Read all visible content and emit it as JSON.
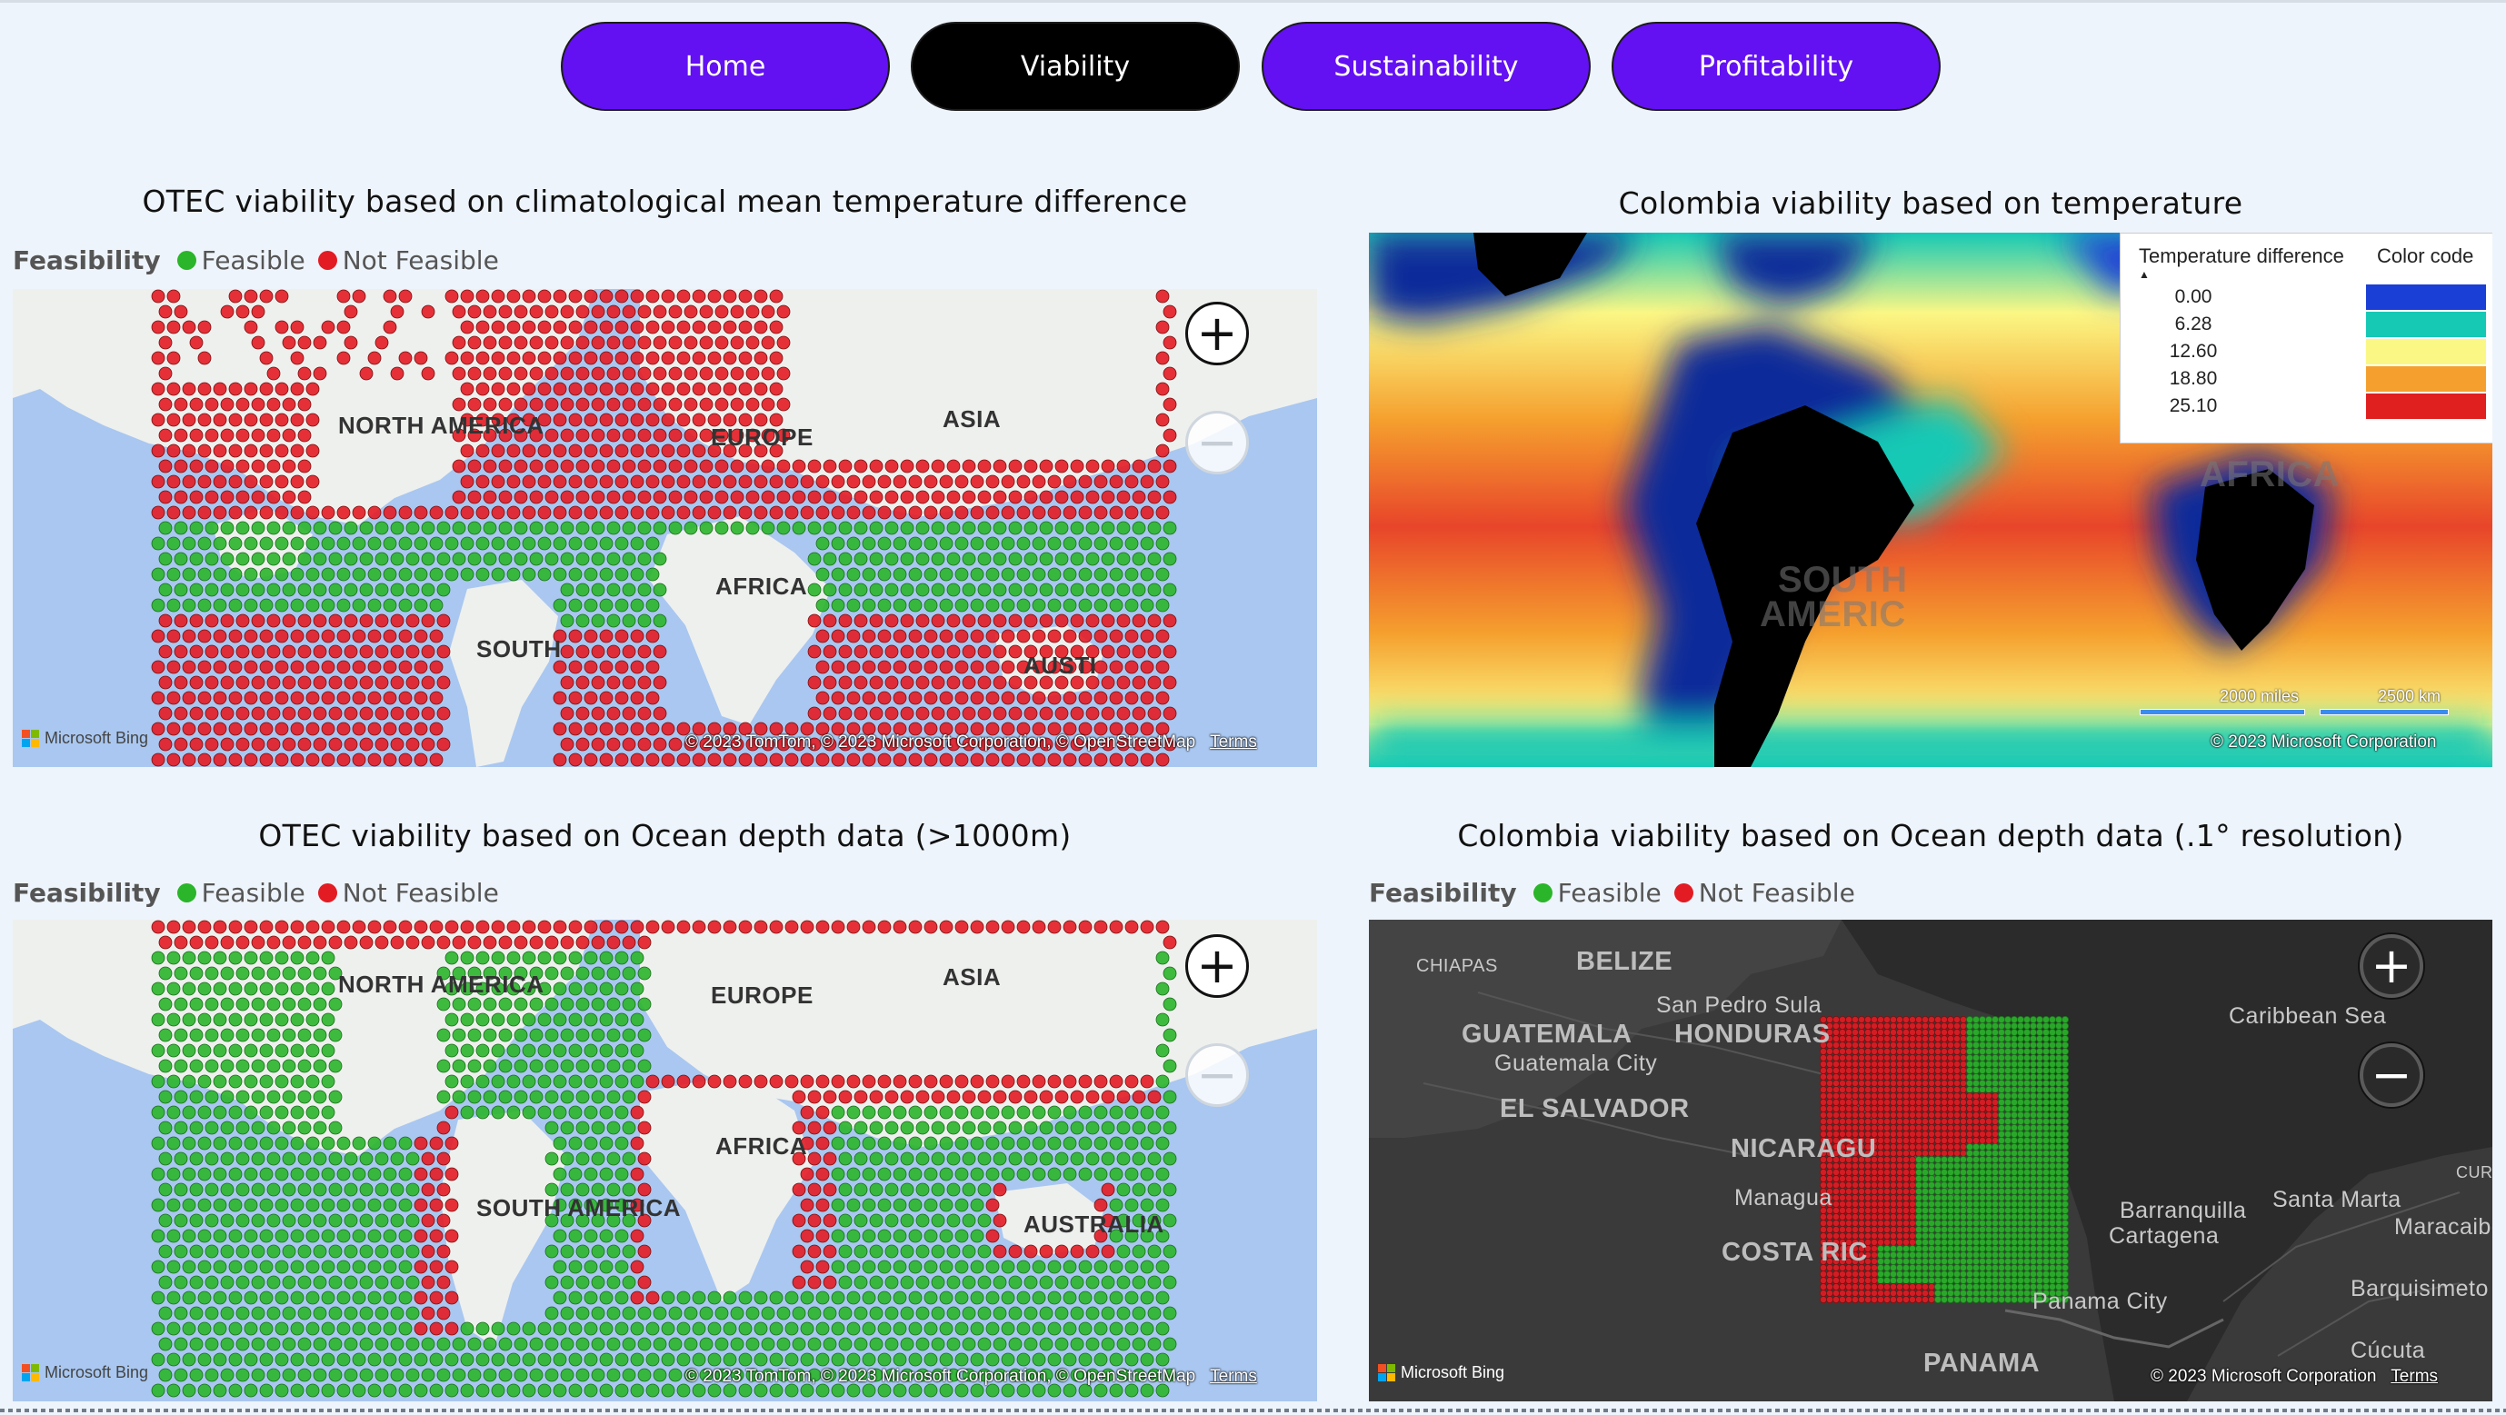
{
  "nav": {
    "home": "Home",
    "viability": "Viability",
    "sustainability": "Sustainability",
    "profitability": "Profitability",
    "colors": {
      "inactive": "#6310f3",
      "active": "#000000"
    }
  },
  "legend": {
    "title": "Feasibility",
    "feasible": "Feasible",
    "not_feasible": "Not Feasible",
    "colors": {
      "feasible": "#2ab52a",
      "not_feasible": "#e31b23"
    }
  },
  "panel_tl": {
    "title": "OTEC viability based on climatological mean temperature difference",
    "labels": [
      "NORTH AMERICA",
      "EUROPE",
      "ASIA",
      "AFRICA",
      "SOUTH",
      "AUSTI"
    ],
    "credit": "© 2023 TomTom, © 2023 Microsoft Corporation, © OpenStreetMap",
    "terms": "Terms",
    "bing": "Microsoft Bing"
  },
  "panel_tr": {
    "title": "Colombia viability based on temperature",
    "labels": [
      "SOUTH",
      "AMERIC",
      "AFRICA"
    ],
    "legend_headers": [
      "Temperature difference",
      "Color code"
    ],
    "legend_values": [
      "0.00",
      "6.28",
      "12.60",
      "18.80",
      "25.10"
    ],
    "legend_colors": [
      "#1a3fd6",
      "#16c9b5",
      "#fbf785",
      "#f5a02e",
      "#e01f1f"
    ],
    "scale_miles": "2000 miles",
    "scale_km": "2500 km",
    "credit": "© 2023 Microsoft Corporation"
  },
  "panel_bl": {
    "title": "OTEC viability based on Ocean depth data (>1000m)",
    "labels": [
      "NORTH AMERICA",
      "EUROPE",
      "ASIA",
      "AFRICA",
      "SOUTH AMERICA",
      "AUSTRALIA"
    ],
    "credit": "© 2023 TomTom, © 2023 Microsoft Corporation, © OpenStreetMap",
    "terms": "Terms",
    "bing": "Microsoft Bing"
  },
  "panel_br": {
    "title": "Colombia viability based on Ocean depth data (.1° resolution)",
    "labels": [
      "BELIZE",
      "CHIAPAS",
      "San Pedro Sula",
      "GUATEMALA",
      "HONDURAS",
      "Guatemala City",
      "EL SALVADOR",
      "NICARAGU",
      "Managua",
      "COSTA RIC",
      "Caribbean Sea",
      "Barranquilla",
      "Cartagena",
      "Santa Marta",
      "Maracaibo",
      "CURA",
      "Barquisimeto",
      "Panama City",
      "Cúcuta",
      "PANAMA"
    ],
    "credit": "© 2023 Microsoft Corporation",
    "terms": "Terms",
    "bing": "Microsoft Bing"
  },
  "zoom": {
    "in": "+",
    "out": "−"
  }
}
